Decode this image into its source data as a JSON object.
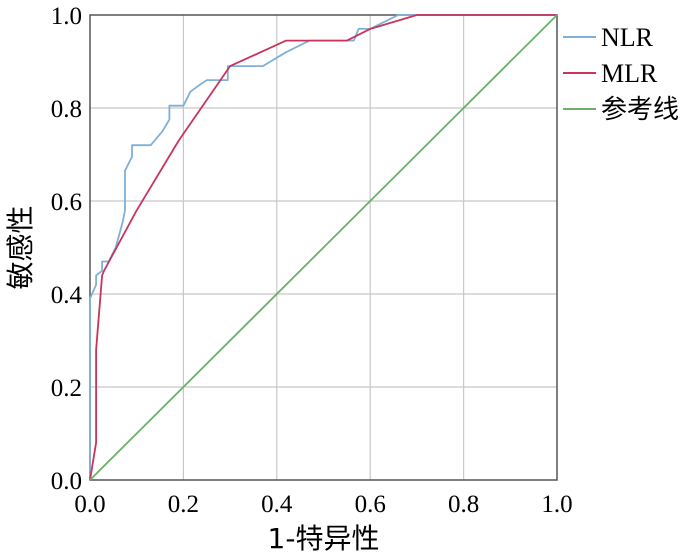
{
  "chart_data": {
    "type": "line",
    "title": "",
    "xlabel": "1-特异性",
    "ylabel": "敏感性",
    "xlim": [
      0,
      1
    ],
    "ylim": [
      0,
      1
    ],
    "xticks": [
      "0.0",
      "0.2",
      "0.4",
      "0.6",
      "0.8",
      "1.0"
    ],
    "yticks": [
      "0.0",
      "0.2",
      "0.4",
      "0.6",
      "0.8",
      "1.0"
    ],
    "grid": true,
    "legend_position": "right",
    "series": [
      {
        "name": "NLR",
        "color": "#7fb0d8",
        "x": [
          0,
          0,
          0.013,
          0.013,
          0.026,
          0.026,
          0.04,
          0.055,
          0.07,
          0.075,
          0.075,
          0.09,
          0.09,
          0.1,
          0.13,
          0.155,
          0.17,
          0.17,
          0.2,
          0.215,
          0.235,
          0.25,
          0.28,
          0.295,
          0.295,
          0.31,
          0.33,
          0.37,
          0.42,
          0.47,
          0.51,
          0.55,
          0.565,
          0.575,
          0.6,
          0.66,
          0.68,
          0.7,
          1.0
        ],
        "y": [
          0,
          0.39,
          0.42,
          0.44,
          0.45,
          0.47,
          0.47,
          0.5,
          0.555,
          0.58,
          0.665,
          0.695,
          0.72,
          0.72,
          0.72,
          0.75,
          0.775,
          0.805,
          0.805,
          0.835,
          0.85,
          0.86,
          0.86,
          0.86,
          0.89,
          0.89,
          0.89,
          0.89,
          0.92,
          0.945,
          0.945,
          0.945,
          0.945,
          0.97,
          0.97,
          1.0,
          1.0,
          1.0,
          1.0
        ]
      },
      {
        "name": "MLR",
        "color": "#c8345c",
        "x": [
          0,
          0.013,
          0.013,
          0.026,
          0.03,
          0.1,
          0.19,
          0.3,
          0.42,
          0.52,
          0.55,
          0.6,
          0.7,
          1.0
        ],
        "y": [
          0,
          0.08,
          0.28,
          0.44,
          0.45,
          0.58,
          0.73,
          0.89,
          0.945,
          0.945,
          0.945,
          0.97,
          1.0,
          1.0
        ]
      },
      {
        "name": "参考线",
        "color": "#6ab06a",
        "x": [
          0,
          1
        ],
        "y": [
          0,
          1
        ]
      }
    ]
  }
}
